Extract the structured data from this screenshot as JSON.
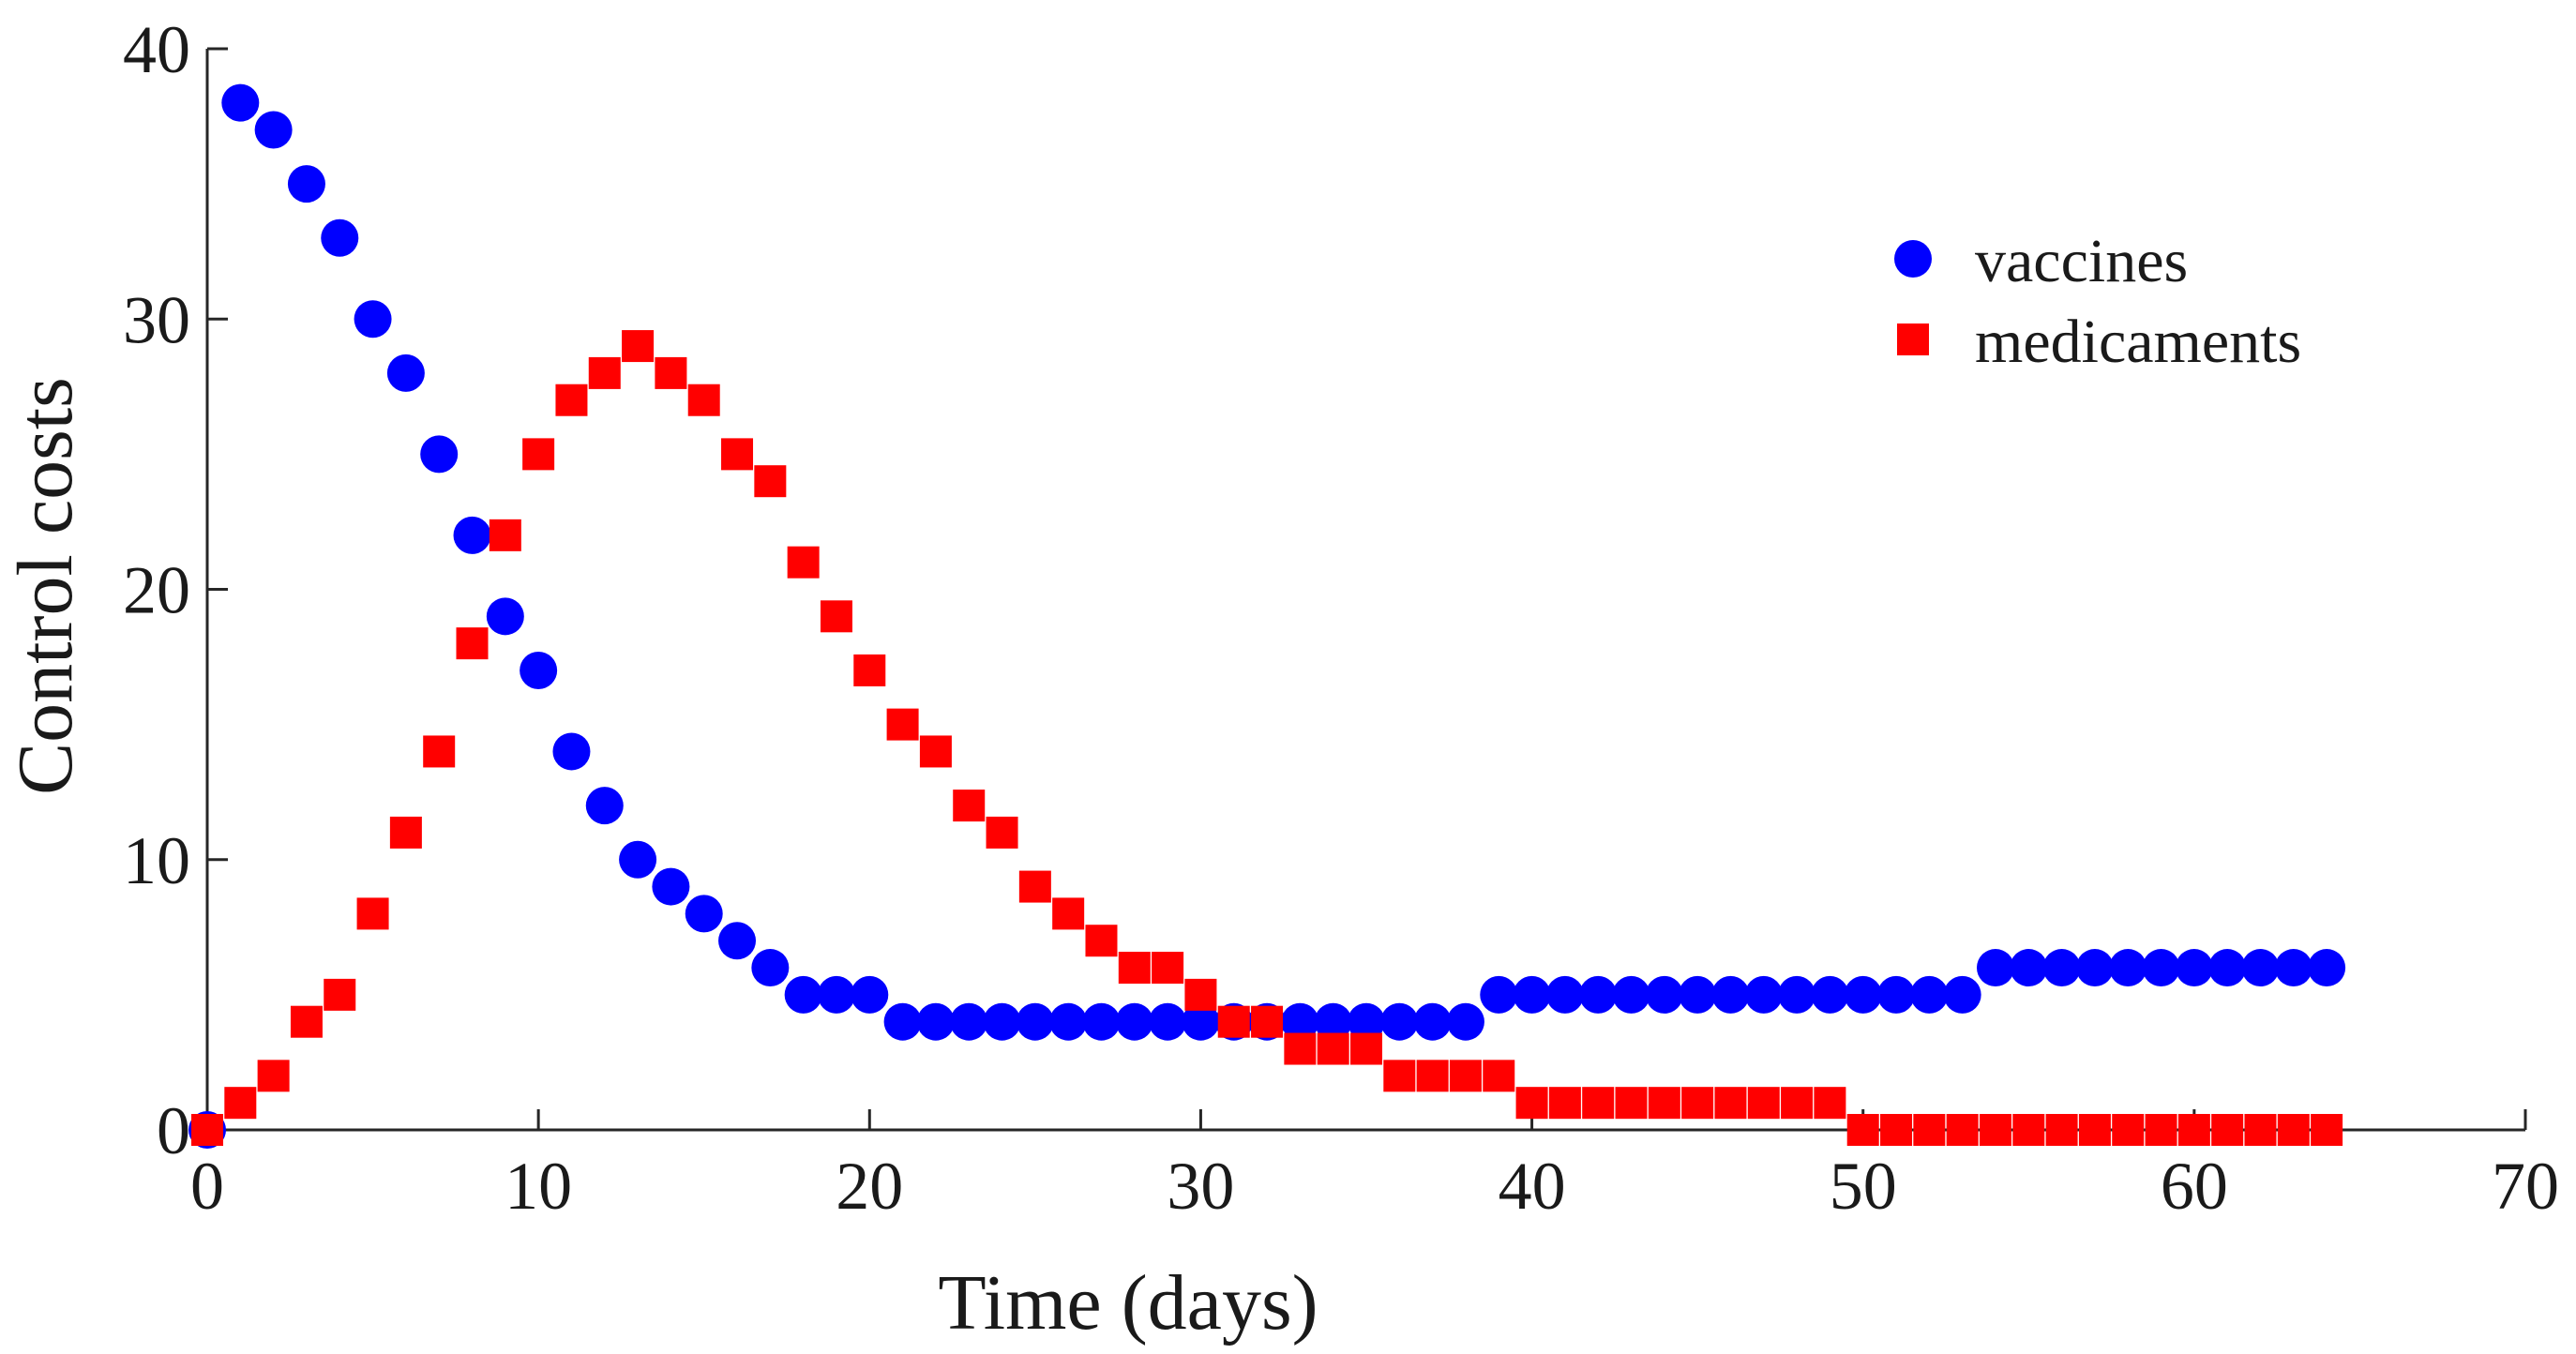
{
  "chart_data": {
    "type": "scatter",
    "title": "",
    "xlabel": "Time (days)",
    "ylabel": "Control costs",
    "xlim": [
      0,
      70
    ],
    "ylim": [
      0,
      40
    ],
    "xticks": [
      0,
      10,
      20,
      30,
      40,
      50,
      60,
      70
    ],
    "yticks": [
      0,
      10,
      20,
      30,
      40
    ],
    "grid": false,
    "legend_position": "top-right",
    "x": [
      0,
      1,
      2,
      3,
      4,
      5,
      6,
      7,
      8,
      9,
      10,
      11,
      12,
      13,
      14,
      15,
      16,
      17,
      18,
      19,
      20,
      21,
      22,
      23,
      24,
      25,
      26,
      27,
      28,
      29,
      30,
      31,
      32,
      33,
      34,
      35,
      36,
      37,
      38,
      39,
      40,
      41,
      42,
      43,
      44,
      45,
      46,
      47,
      48,
      49,
      50,
      51,
      52,
      53,
      54,
      55,
      56,
      57,
      58,
      59,
      60,
      61,
      62,
      63,
      64
    ],
    "series": [
      {
        "name": "vaccines",
        "marker": "circle",
        "color": "#0000ff",
        "values": [
          0,
          38,
          37,
          35,
          33,
          30,
          28,
          25,
          22,
          19,
          17,
          14,
          12,
          10,
          9,
          8,
          7,
          6,
          5,
          5,
          5,
          4,
          4,
          4,
          4,
          4,
          4,
          4,
          4,
          4,
          4,
          4,
          4,
          4,
          4,
          4,
          4,
          4,
          4,
          5,
          5,
          5,
          5,
          5,
          5,
          5,
          5,
          5,
          5,
          5,
          5,
          5,
          5,
          5,
          6,
          6,
          6,
          6,
          6,
          6,
          6,
          6,
          6,
          6,
          6
        ]
      },
      {
        "name": "medicaments",
        "marker": "square",
        "color": "#ff0000",
        "values": [
          0,
          1,
          2,
          4,
          5,
          8,
          11,
          14,
          18,
          22,
          25,
          27,
          28,
          29,
          28,
          27,
          25,
          24,
          21,
          19,
          17,
          15,
          14,
          12,
          11,
          9,
          8,
          7,
          6,
          6,
          5,
          4,
          4,
          3,
          3,
          3,
          2,
          2,
          2,
          2,
          1,
          1,
          1,
          1,
          1,
          1,
          1,
          1,
          1,
          1,
          0,
          0,
          0,
          0,
          0,
          0,
          0,
          0,
          0,
          0,
          0,
          0,
          0,
          0,
          0
        ]
      }
    ]
  }
}
